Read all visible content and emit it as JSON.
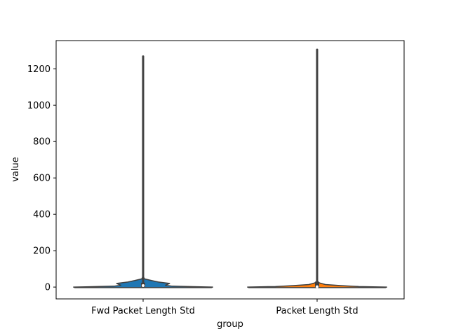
{
  "chart_data": {
    "type": "violin",
    "title": "",
    "xlabel": "group",
    "ylabel": "value",
    "categories": [
      "Fwd Packet Length Std",
      "Packet Length Std"
    ],
    "ylim": [
      -65,
      1355
    ],
    "yticks": [
      0,
      200,
      400,
      600,
      800,
      1000,
      1200
    ],
    "grid": false,
    "series": [
      {
        "category": "Fwd Packet Length Std",
        "color": "#1f77b4",
        "min": 0,
        "max": 1268,
        "q1": 0,
        "median": 8,
        "q3": 24,
        "density": [
          [
            -3,
            0.98
          ],
          [
            0,
            1.0
          ],
          [
            5,
            0.42
          ],
          [
            10,
            0.32
          ],
          [
            20,
            0.38
          ],
          [
            28,
            0.22
          ],
          [
            36,
            0.12
          ],
          [
            45,
            0.02
          ],
          [
            60,
            0.0
          ]
        ]
      },
      {
        "category": "Packet Length Std",
        "color": "#ff7f0e",
        "min": 0,
        "max": 1305,
        "q1": 0,
        "median": 2,
        "q3": 30,
        "density": [
          [
            -3,
            0.98
          ],
          [
            0,
            1.0
          ],
          [
            3,
            0.6
          ],
          [
            8,
            0.34
          ],
          [
            14,
            0.12
          ],
          [
            22,
            0.04
          ],
          [
            30,
            0.0
          ]
        ]
      }
    ]
  }
}
